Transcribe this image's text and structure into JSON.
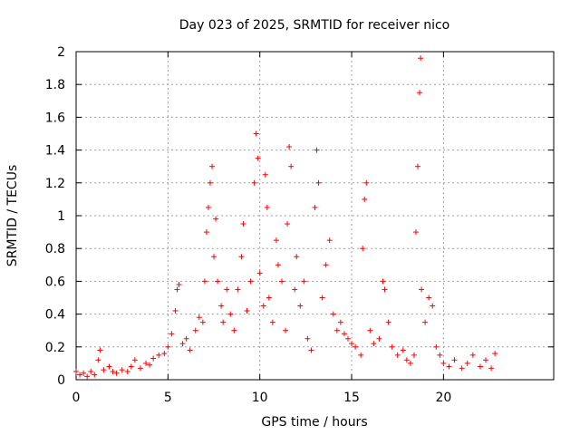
{
  "chart_data": {
    "type": "scatter",
    "title": "Day 023 of 2025, SRMTID for receiver nico",
    "xlabel": "GPS time / hours",
    "ylabel": "SRMTID / TECUs",
    "xlim": [
      0,
      26
    ],
    "ylim": [
      0,
      2
    ],
    "xticks": [
      0,
      5,
      10,
      15,
      20
    ],
    "yticks": [
      0,
      0.2,
      0.4,
      0.6,
      0.8,
      1,
      1.2,
      1.4,
      1.6,
      1.8,
      2
    ],
    "grid": true,
    "marker": "+",
    "series": [
      {
        "name": "SRMTID",
        "color": "#ff0000",
        "points": [
          [
            0.0,
            0.05
          ],
          [
            0.2,
            0.03
          ],
          [
            0.4,
            0.04
          ],
          [
            0.6,
            0.02
          ],
          [
            0.8,
            0.05
          ],
          [
            1.0,
            0.03
          ],
          [
            1.2,
            0.12
          ],
          [
            1.3,
            0.18
          ],
          [
            1.5,
            0.06
          ],
          [
            1.8,
            0.08
          ],
          [
            2.0,
            0.05
          ],
          [
            2.2,
            0.04
          ],
          [
            2.5,
            0.06
          ],
          [
            2.8,
            0.05
          ],
          [
            3.0,
            0.08
          ],
          [
            3.2,
            0.12
          ],
          [
            3.5,
            0.07
          ],
          [
            3.8,
            0.1
          ],
          [
            4.0,
            0.09
          ],
          [
            4.2,
            0.13
          ],
          [
            4.5,
            0.15
          ],
          [
            4.8,
            0.16
          ],
          [
            5.0,
            0.2
          ],
          [
            5.2,
            0.28
          ],
          [
            5.4,
            0.42
          ],
          [
            5.5,
            0.55
          ],
          [
            5.6,
            0.58
          ],
          [
            5.8,
            0.22
          ],
          [
            6.0,
            0.25
          ],
          [
            6.2,
            0.18
          ],
          [
            6.5,
            0.3
          ],
          [
            6.7,
            0.38
          ],
          [
            6.9,
            0.35
          ],
          [
            7.0,
            0.6
          ],
          [
            7.1,
            0.9
          ],
          [
            7.2,
            1.05
          ],
          [
            7.3,
            1.2
          ],
          [
            7.4,
            1.3
          ],
          [
            7.5,
            0.75
          ],
          [
            7.6,
            0.98
          ],
          [
            7.7,
            0.6
          ],
          [
            7.9,
            0.45
          ],
          [
            8.0,
            0.35
          ],
          [
            8.2,
            0.55
          ],
          [
            8.4,
            0.4
          ],
          [
            8.6,
            0.3
          ],
          [
            8.8,
            0.55
          ],
          [
            9.0,
            0.75
          ],
          [
            9.1,
            0.95
          ],
          [
            9.3,
            0.42
          ],
          [
            9.5,
            0.6
          ],
          [
            9.7,
            1.2
          ],
          [
            9.8,
            1.5
          ],
          [
            9.9,
            1.35
          ],
          [
            10.0,
            0.65
          ],
          [
            10.2,
            0.45
          ],
          [
            10.3,
            1.25
          ],
          [
            10.4,
            1.05
          ],
          [
            10.5,
            0.5
          ],
          [
            10.7,
            0.35
          ],
          [
            10.9,
            0.85
          ],
          [
            11.0,
            0.7
          ],
          [
            11.2,
            0.6
          ],
          [
            11.4,
            0.3
          ],
          [
            11.5,
            0.95
          ],
          [
            11.6,
            1.42
          ],
          [
            11.7,
            1.3
          ],
          [
            11.9,
            0.55
          ],
          [
            12.0,
            0.75
          ],
          [
            12.2,
            0.45
          ],
          [
            12.4,
            0.6
          ],
          [
            12.6,
            0.25
          ],
          [
            12.8,
            0.18
          ],
          [
            13.0,
            1.05
          ],
          [
            13.1,
            1.4
          ],
          [
            13.2,
            1.2
          ],
          [
            13.4,
            0.5
          ],
          [
            13.6,
            0.7
          ],
          [
            13.8,
            0.85
          ],
          [
            14.0,
            0.4
          ],
          [
            14.2,
            0.3
          ],
          [
            14.4,
            0.35
          ],
          [
            14.6,
            0.28
          ],
          [
            14.8,
            0.25
          ],
          [
            15.0,
            0.22
          ],
          [
            15.2,
            0.2
          ],
          [
            15.5,
            0.15
          ],
          [
            15.6,
            0.8
          ],
          [
            15.7,
            1.1
          ],
          [
            15.8,
            1.2
          ],
          [
            16.0,
            0.3
          ],
          [
            16.2,
            0.22
          ],
          [
            16.5,
            0.25
          ],
          [
            16.7,
            0.6
          ],
          [
            16.8,
            0.55
          ],
          [
            17.0,
            0.35
          ],
          [
            17.2,
            0.2
          ],
          [
            17.5,
            0.15
          ],
          [
            17.8,
            0.18
          ],
          [
            18.0,
            0.12
          ],
          [
            18.2,
            0.1
          ],
          [
            18.4,
            0.15
          ],
          [
            18.5,
            0.9
          ],
          [
            18.6,
            1.3
          ],
          [
            18.7,
            1.75
          ],
          [
            18.75,
            1.96
          ],
          [
            18.8,
            0.55
          ],
          [
            19.0,
            0.35
          ],
          [
            19.2,
            0.5
          ],
          [
            19.4,
            0.45
          ],
          [
            19.6,
            0.2
          ],
          [
            19.8,
            0.15
          ],
          [
            20.0,
            0.1
          ],
          [
            20.3,
            0.08
          ],
          [
            20.6,
            0.12
          ],
          [
            21.0,
            0.07
          ],
          [
            21.3,
            0.1
          ],
          [
            21.6,
            0.15
          ],
          [
            22.0,
            0.08
          ],
          [
            22.3,
            0.12
          ],
          [
            22.6,
            0.07
          ],
          [
            22.8,
            0.16
          ]
        ]
      }
    ]
  }
}
